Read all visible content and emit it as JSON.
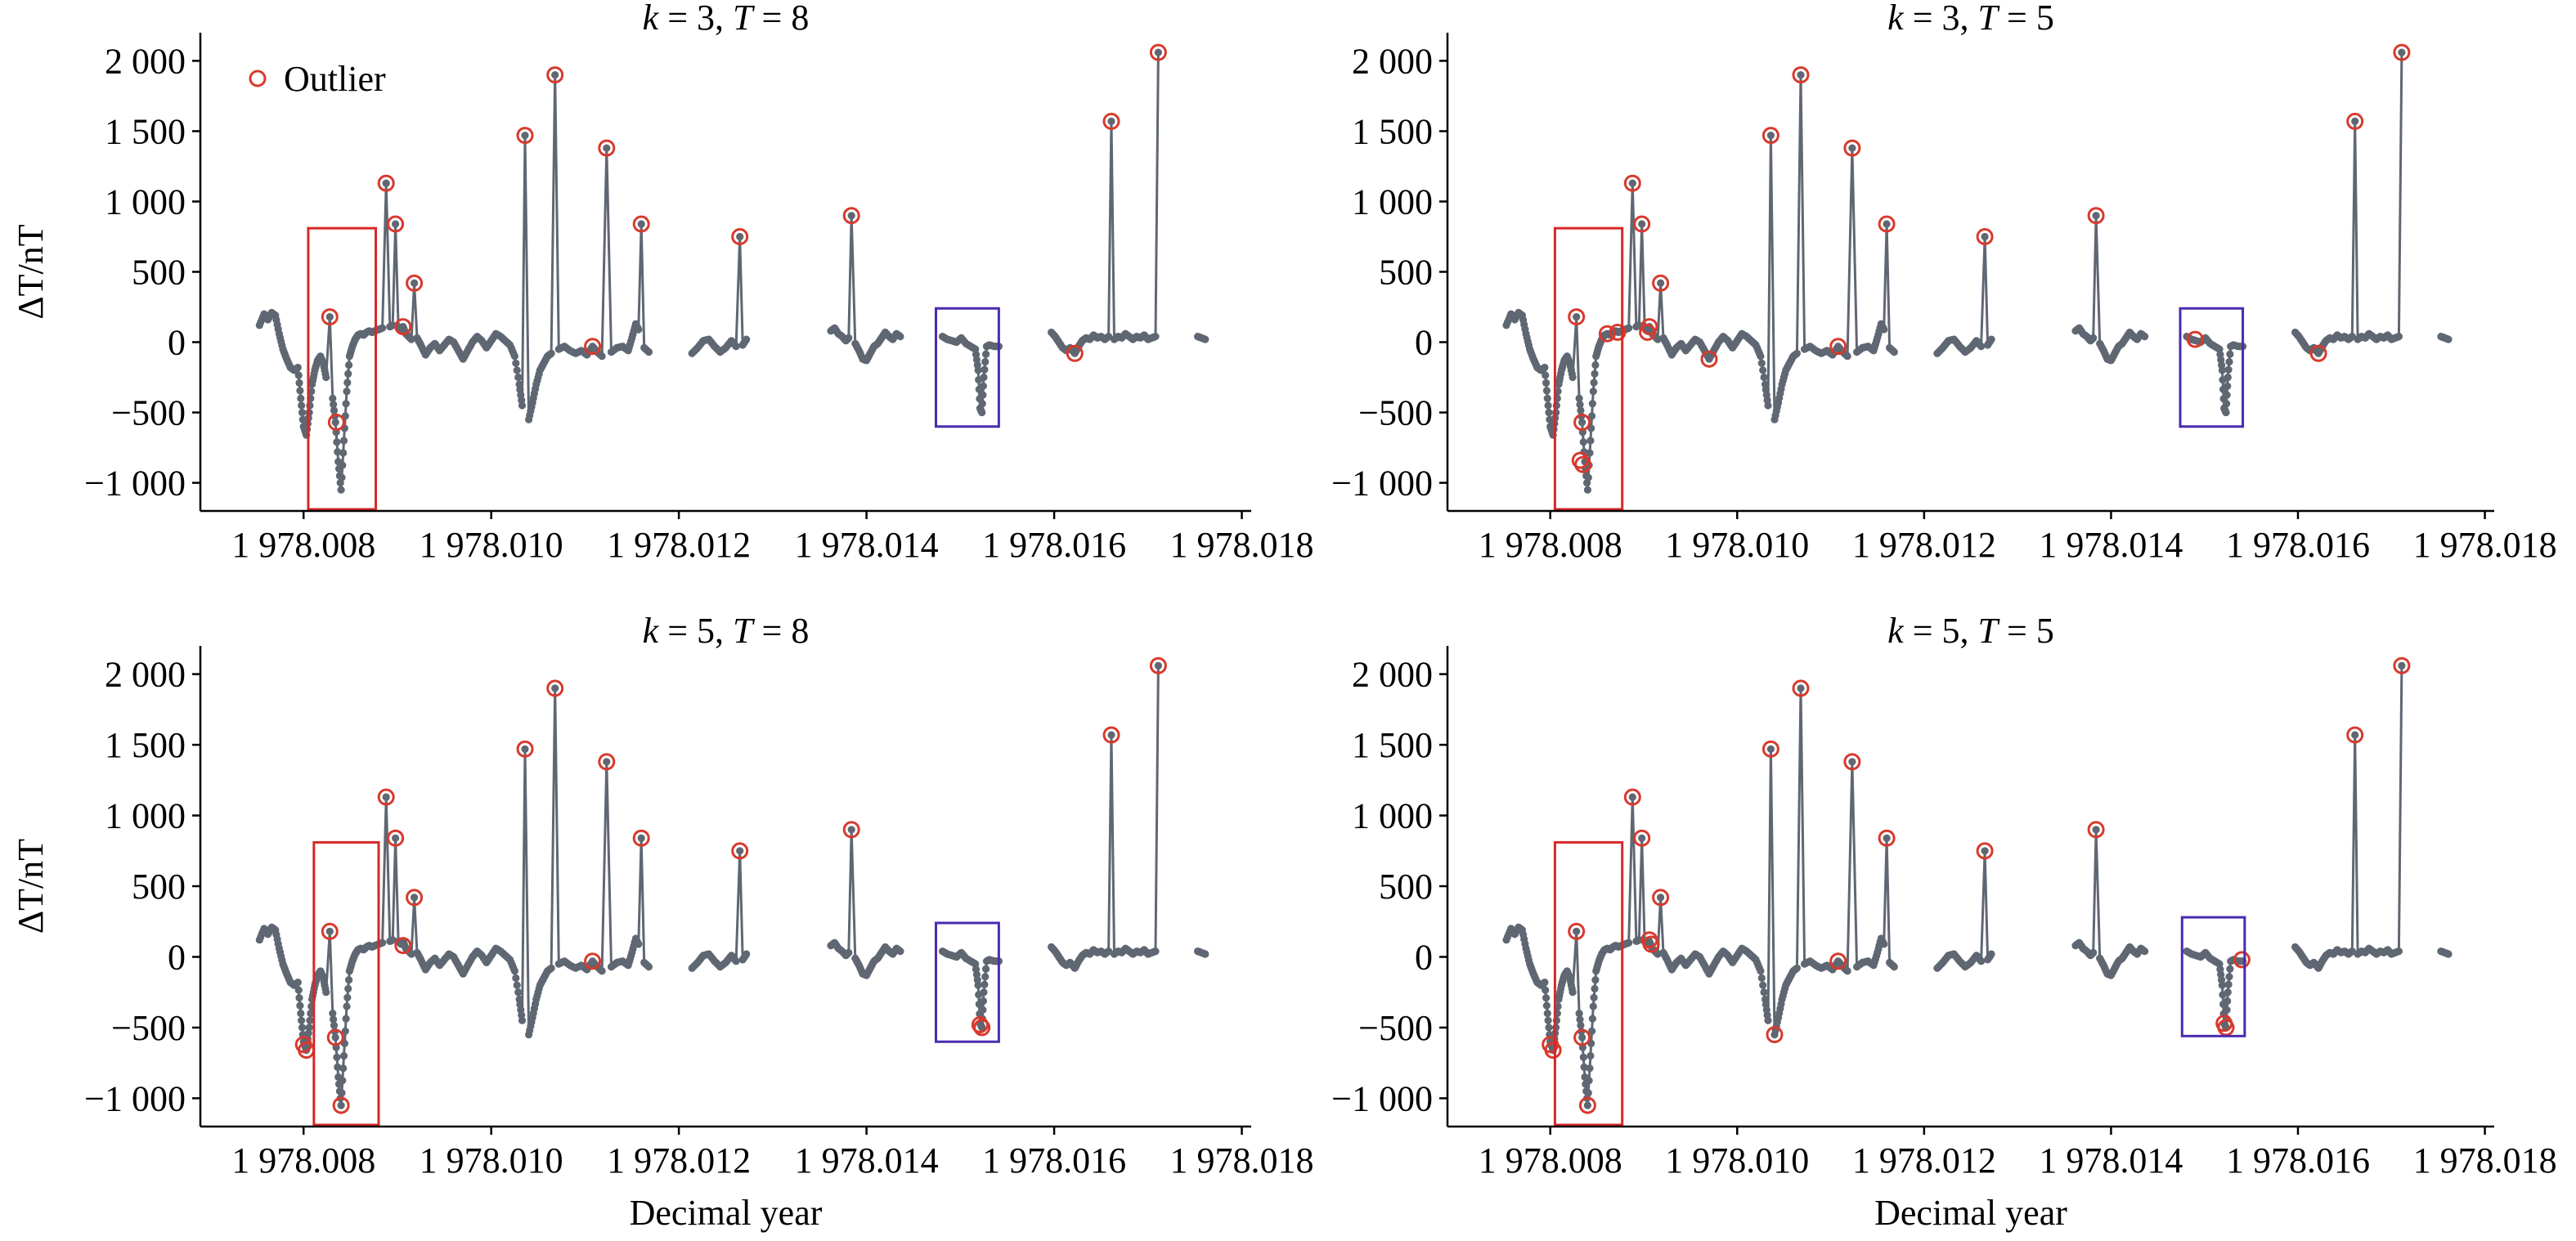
{
  "figure": {
    "xlabel": "Decimal year",
    "ylabel": "ΔT/nT",
    "legend": {
      "label": "Outlier",
      "placement": "top-left of first panel"
    },
    "colors": {
      "series": "#5f6773",
      "outlier": "#d9392c",
      "box_red": "#d62828",
      "box_blue": "#4a2bb0",
      "axis": "#000000"
    }
  },
  "chart_data": [
    {
      "type": "scatter",
      "title_k": "3",
      "title_T": "8",
      "xlim": [
        1978.0069,
        1978.0181
      ],
      "ylim": [
        -1200,
        2200
      ],
      "x_ticks": [
        1978.008,
        1978.01,
        1978.012,
        1978.014,
        1978.016,
        1978.018
      ],
      "x_tick_labels": [
        "1 978.008",
        "1 978.010",
        "1 978.012",
        "1 978.014",
        "1 978.016",
        "1 978.018"
      ],
      "y_ticks": [
        -1000,
        -500,
        0,
        500,
        1000,
        1500,
        2000
      ],
      "y_tick_labels": [
        "−1 000",
        "−500",
        "0",
        "500",
        "1 000",
        "1 500",
        "2 000"
      ],
      "grid": false,
      "outliers": [
        [
          1978.00828,
          180
        ],
        [
          1978.00835,
          -570
        ],
        [
          1978.00888,
          1130
        ],
        [
          1978.00898,
          840
        ],
        [
          1978.00906,
          110
        ],
        [
          1978.00918,
          420
        ],
        [
          1978.01036,
          1470
        ],
        [
          1978.01068,
          1900
        ],
        [
          1978.01108,
          -30
        ],
        [
          1978.01123,
          1380
        ],
        [
          1978.0116,
          840
        ],
        [
          1978.01265,
          750
        ],
        [
          1978.01384,
          900
        ],
        [
          1978.01622,
          -80
        ],
        [
          1978.01661,
          1570
        ],
        [
          1978.01711,
          2060
        ]
      ],
      "red_box": {
        "x": [
          1978.00805,
          1978.00877
        ],
        "y": [
          -1200,
          810
        ]
      },
      "blue_box": {
        "x": [
          1978.01474,
          1978.01541
        ],
        "y": [
          -600,
          240
        ]
      }
    },
    {
      "type": "scatter",
      "title_k": "3",
      "title_T": "5",
      "xlim": [
        1978.0069,
        1978.0181
      ],
      "ylim": [
        -1200,
        2200
      ],
      "x_ticks": [
        1978.008,
        1978.01,
        1978.012,
        1978.014,
        1978.016,
        1978.018
      ],
      "x_tick_labels": [
        "1 978.008",
        "1 978.010",
        "1 978.012",
        "1 978.014",
        "1 978.016",
        "1 978.018"
      ],
      "y_ticks": [
        -1000,
        -500,
        0,
        500,
        1000,
        1500,
        2000
      ],
      "y_tick_labels": [
        "−1 000",
        "−500",
        "0",
        "500",
        "1 000",
        "1 500",
        "2 000"
      ],
      "grid": false,
      "outliers": [
        [
          1978.00828,
          180
        ],
        [
          1978.00834,
          -570
        ],
        [
          1978.00832,
          -840
        ],
        [
          1978.00835,
          -870
        ],
        [
          1978.00861,
          60
        ],
        [
          1978.00872,
          70
        ],
        [
          1978.00888,
          1130
        ],
        [
          1978.00898,
          840
        ],
        [
          1978.00906,
          110
        ],
        [
          1978.00904,
          70
        ],
        [
          1978.00918,
          420
        ],
        [
          1978.0097,
          -120
        ],
        [
          1978.01036,
          1470
        ],
        [
          1978.01068,
          1900
        ],
        [
          1978.01108,
          -30
        ],
        [
          1978.01123,
          1380
        ],
        [
          1978.0116,
          840
        ],
        [
          1978.01265,
          750
        ],
        [
          1978.01384,
          900
        ],
        [
          1978.0149,
          20
        ],
        [
          1978.01622,
          -80
        ],
        [
          1978.01661,
          1570
        ],
        [
          1978.01711,
          2060
        ]
      ],
      "red_box": {
        "x": [
          1978.00805,
          1978.00877
        ],
        "y": [
          -1200,
          810
        ]
      },
      "blue_box": {
        "x": [
          1978.01474,
          1978.01541
        ],
        "y": [
          -600,
          240
        ]
      }
    },
    {
      "type": "scatter",
      "title_k": "5",
      "title_T": "8",
      "xlim": [
        1978.0069,
        1978.0181
      ],
      "ylim": [
        -1200,
        2200
      ],
      "x_ticks": [
        1978.008,
        1978.01,
        1978.012,
        1978.014,
        1978.016,
        1978.018
      ],
      "x_tick_labels": [
        "1 978.008",
        "1 978.010",
        "1 978.012",
        "1 978.014",
        "1 978.016",
        "1 978.018"
      ],
      "y_ticks": [
        -1000,
        -500,
        0,
        500,
        1000,
        1500,
        2000
      ],
      "y_tick_labels": [
        "−1 000",
        "−500",
        "0",
        "500",
        "1 000",
        "1 500",
        "2 000"
      ],
      "grid": false,
      "outliers": [
        [
          1978.008,
          -620
        ],
        [
          1978.00803,
          -660
        ],
        [
          1978.00828,
          180
        ],
        [
          1978.00834,
          -570
        ],
        [
          1978.0084,
          -1050
        ],
        [
          1978.00888,
          1130
        ],
        [
          1978.00898,
          840
        ],
        [
          1978.00906,
          80
        ],
        [
          1978.00918,
          420
        ],
        [
          1978.01036,
          1470
        ],
        [
          1978.01068,
          1900
        ],
        [
          1978.01108,
          -30
        ],
        [
          1978.01123,
          1380
        ],
        [
          1978.0116,
          840
        ],
        [
          1978.01265,
          750
        ],
        [
          1978.01384,
          900
        ],
        [
          1978.01521,
          -480
        ],
        [
          1978.01523,
          -500
        ],
        [
          1978.01661,
          1570
        ],
        [
          1978.01711,
          2060
        ]
      ],
      "red_box": {
        "x": [
          1978.00811,
          1978.0088
        ],
        "y": [
          -1200,
          810
        ]
      },
      "blue_box": {
        "x": [
          1978.01474,
          1978.01541
        ],
        "y": [
          -600,
          240
        ]
      }
    },
    {
      "type": "scatter",
      "title_k": "5",
      "title_T": "5",
      "xlim": [
        1978.0069,
        1978.0181
      ],
      "ylim": [
        -1200,
        2200
      ],
      "x_ticks": [
        1978.008,
        1978.01,
        1978.012,
        1978.014,
        1978.016,
        1978.018
      ],
      "x_tick_labels": [
        "1 978.008",
        "1 978.010",
        "1 978.012",
        "1 978.014",
        "1 978.016",
        "1 978.018"
      ],
      "y_ticks": [
        -1000,
        -500,
        0,
        500,
        1000,
        1500,
        2000
      ],
      "y_tick_labels": [
        "−1 000",
        "−500",
        "0",
        "500",
        "1 000",
        "1 500",
        "2 000"
      ],
      "grid": false,
      "outliers": [
        [
          1978.008,
          -620
        ],
        [
          1978.00803,
          -660
        ],
        [
          1978.00828,
          180
        ],
        [
          1978.00834,
          -570
        ],
        [
          1978.0084,
          -1050
        ],
        [
          1978.00888,
          1130
        ],
        [
          1978.00898,
          840
        ],
        [
          1978.00906,
          120
        ],
        [
          1978.00908,
          90
        ],
        [
          1978.00918,
          420
        ],
        [
          1978.01036,
          1470
        ],
        [
          1978.0104,
          -550
        ],
        [
          1978.01068,
          1900
        ],
        [
          1978.01108,
          -30
        ],
        [
          1978.01123,
          1380
        ],
        [
          1978.0116,
          840
        ],
        [
          1978.01265,
          750
        ],
        [
          1978.01384,
          900
        ],
        [
          1978.01521,
          -470
        ],
        [
          1978.01523,
          -500
        ],
        [
          1978.0154,
          -20
        ],
        [
          1978.01661,
          1570
        ],
        [
          1978.01711,
          2060
        ]
      ],
      "red_box": {
        "x": [
          1978.00805,
          1978.00877
        ],
        "y": [
          -1200,
          810
        ]
      },
      "blue_box": {
        "x": [
          1978.01476,
          1978.01543
        ],
        "y": [
          -560,
          280
        ]
      }
    }
  ]
}
